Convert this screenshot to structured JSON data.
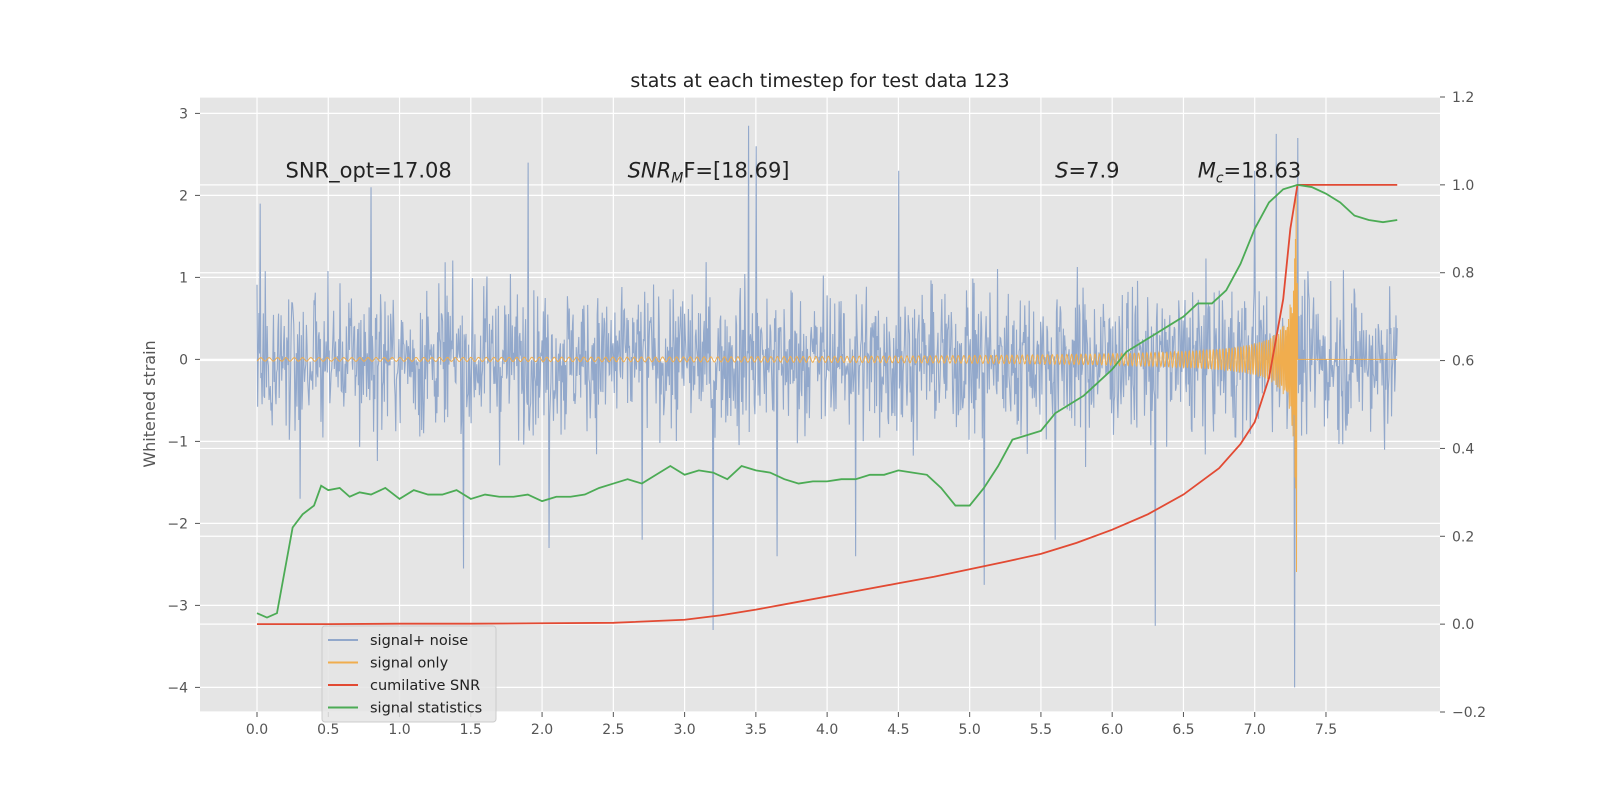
{
  "chart_data": {
    "type": "line",
    "title": "stats at each timestep for test data 123",
    "ylabel": "Whitened strain",
    "xlim": [
      -0.4,
      8.3
    ],
    "ylim": [
      -4.3,
      3.2
    ],
    "y2lim": [
      -0.2,
      1.2
    ],
    "x_ticks": [
      "0.0",
      "0.5",
      "1.0",
      "1.5",
      "2.0",
      "2.5",
      "3.0",
      "3.5",
      "4.0",
      "4.5",
      "5.0",
      "5.5",
      "6.0",
      "6.5",
      "7.0",
      "7.5"
    ],
    "y_ticks": [
      "3",
      "2",
      "1",
      "0",
      "−1",
      "−2",
      "−3",
      "−4"
    ],
    "y2_ticks": [
      "1.2",
      "1.0",
      "0.8",
      "0.6",
      "0.4",
      "0.2",
      "0.0",
      "−0.2"
    ],
    "grid": true,
    "legend_position": "lower-left",
    "colors": {
      "noise": "#92a8cb",
      "signal": "#f0ad4e",
      "cumulative_snr": "#e24a33",
      "statistics": "#4cab55",
      "plot_bg": "#e5e5e5"
    },
    "annotations": [
      {
        "id": "snr-opt",
        "text": "SNR_opt=17.08",
        "x": 0.2,
        "y": 2.22
      },
      {
        "id": "snr-mf",
        "base": "SNR",
        "sub": "M",
        "rest": "F=[18.69]",
        "x": 2.6,
        "y": 2.22
      },
      {
        "id": "s-stat",
        "base": "S",
        "sub": "",
        "rest": "=7.9",
        "x": 5.6,
        "y": 2.22
      },
      {
        "id": "mc",
        "base": "M",
        "sub": "c",
        "rest": "=18.63",
        "x": 6.6,
        "y": 2.22
      }
    ],
    "series": [
      {
        "name": "signal+ noise",
        "axis": "left",
        "envelope": {
          "x_start": 0.0,
          "x_end": 8.0,
          "upper": 1.95,
          "lower": -1.95
        },
        "spikes": [
          [
            0.02,
            1.9
          ],
          [
            0.3,
            -1.7
          ],
          [
            0.8,
            2.1
          ],
          [
            1.45,
            -2.55
          ],
          [
            1.9,
            2.4
          ],
          [
            2.05,
            -2.3
          ],
          [
            2.7,
            -2.2
          ],
          [
            3.2,
            -3.3
          ],
          [
            3.45,
            2.85
          ],
          [
            3.5,
            2.6
          ],
          [
            3.65,
            -2.4
          ],
          [
            4.2,
            -2.4
          ],
          [
            4.5,
            2.3
          ],
          [
            5.1,
            -2.75
          ],
          [
            5.6,
            -2.2
          ],
          [
            6.3,
            -3.25
          ],
          [
            7.0,
            2.3
          ],
          [
            7.15,
            2.75
          ],
          [
            7.28,
            -4.0
          ],
          [
            7.3,
            2.7
          ]
        ]
      },
      {
        "name": "signal only",
        "axis": "left",
        "chirp": {
          "x_start": 0.0,
          "x_merger": 7.3,
          "x_end": 8.0,
          "peak_amplitude": 2.6
        }
      },
      {
        "name": "cumilative SNR",
        "axis": "right",
        "x": [
          0,
          0.5,
          1.0,
          1.5,
          2.0,
          2.5,
          3.0,
          3.25,
          3.5,
          3.75,
          4.0,
          4.25,
          4.5,
          4.75,
          5.0,
          5.25,
          5.5,
          5.75,
          6.0,
          6.25,
          6.5,
          6.75,
          6.9,
          7.0,
          7.1,
          7.2,
          7.25,
          7.3,
          7.35,
          8.0
        ],
        "values": [
          0.0,
          0.0,
          0.001,
          0.001,
          0.002,
          0.003,
          0.01,
          0.02,
          0.033,
          0.048,
          0.063,
          0.078,
          0.093,
          0.108,
          0.125,
          0.142,
          0.16,
          0.185,
          0.215,
          0.25,
          0.295,
          0.355,
          0.41,
          0.46,
          0.56,
          0.74,
          0.9,
          1.0,
          1.0,
          1.0
        ]
      },
      {
        "name": "signal statistics",
        "axis": "right",
        "x": [
          0,
          0.07,
          0.14,
          0.25,
          0.32,
          0.4,
          0.45,
          0.5,
          0.58,
          0.65,
          0.72,
          0.8,
          0.9,
          1.0,
          1.1,
          1.2,
          1.3,
          1.4,
          1.5,
          1.6,
          1.7,
          1.8,
          1.9,
          2.0,
          2.1,
          2.2,
          2.3,
          2.4,
          2.5,
          2.6,
          2.7,
          2.8,
          2.9,
          3.0,
          3.1,
          3.2,
          3.3,
          3.4,
          3.5,
          3.6,
          3.7,
          3.8,
          3.9,
          4.0,
          4.1,
          4.2,
          4.3,
          4.4,
          4.5,
          4.6,
          4.7,
          4.8,
          4.9,
          5.0,
          5.1,
          5.2,
          5.3,
          5.4,
          5.5,
          5.6,
          5.7,
          5.8,
          5.9,
          6.0,
          6.1,
          6.2,
          6.3,
          6.4,
          6.5,
          6.6,
          6.7,
          6.8,
          6.9,
          7.0,
          7.1,
          7.2,
          7.3,
          7.4,
          7.5,
          7.6,
          7.7,
          7.8,
          7.9,
          8.0
        ],
        "values": [
          0.025,
          0.015,
          0.025,
          0.22,
          0.25,
          0.27,
          0.315,
          0.305,
          0.31,
          0.29,
          0.3,
          0.295,
          0.31,
          0.285,
          0.305,
          0.295,
          0.295,
          0.305,
          0.285,
          0.295,
          0.29,
          0.29,
          0.295,
          0.28,
          0.29,
          0.29,
          0.295,
          0.31,
          0.32,
          0.33,
          0.32,
          0.34,
          0.36,
          0.34,
          0.35,
          0.345,
          0.33,
          0.36,
          0.35,
          0.345,
          0.33,
          0.32,
          0.325,
          0.325,
          0.33,
          0.33,
          0.34,
          0.34,
          0.35,
          0.345,
          0.34,
          0.31,
          0.27,
          0.27,
          0.31,
          0.36,
          0.42,
          0.43,
          0.44,
          0.48,
          0.5,
          0.52,
          0.55,
          0.58,
          0.62,
          0.64,
          0.66,
          0.68,
          0.7,
          0.73,
          0.73,
          0.76,
          0.82,
          0.9,
          0.96,
          0.99,
          1.0,
          0.995,
          0.98,
          0.96,
          0.93,
          0.92,
          0.915,
          0.92
        ]
      }
    ]
  }
}
